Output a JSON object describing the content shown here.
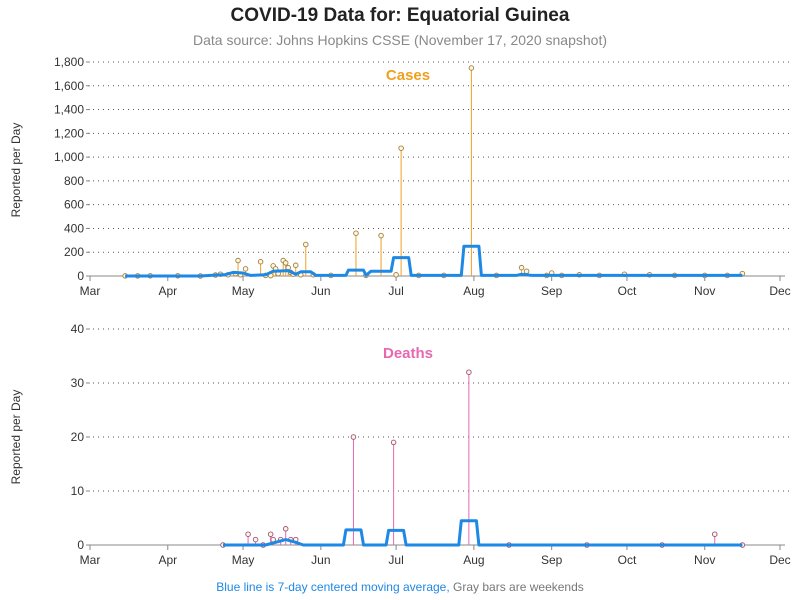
{
  "title": "COVID-19 Data for: Equatorial Guinea",
  "subtitle": "Data source: Johns Hopkins CSSE (November 17, 2020 snapshot)",
  "footer": {
    "blue_text": "Blue line is 7-day centered moving average,",
    "gray_text": "Gray bars are weekends"
  },
  "colors": {
    "cases": "#f0a020",
    "deaths": "#e868b0",
    "moving_average": "#1e88e5",
    "axis": "#888888",
    "grid": "#555555"
  },
  "chart_data": [
    {
      "type": "line",
      "title": "Cases",
      "ylabel": "Reported per Day",
      "ylim": [
        0,
        1800
      ],
      "yticks": [
        0,
        200,
        400,
        600,
        800,
        1000,
        1200,
        1400,
        1600,
        1800
      ],
      "ytick_labels": [
        "0",
        "200",
        "400",
        "600",
        "800",
        "1,000",
        "1,200",
        "1,400",
        "1,600",
        "1,800"
      ],
      "xticks": [
        "Mar",
        "Apr",
        "May",
        "Jun",
        "Jul",
        "Aug",
        "Sep",
        "Oct",
        "Nov",
        "Dec"
      ],
      "grid": "horizontal dotted",
      "series": [
        {
          "name": "Reported",
          "style": "needles with markers",
          "points": [
            [
              "2020-03-15",
              1
            ],
            [
              "2020-03-20",
              1
            ],
            [
              "2020-03-25",
              2
            ],
            [
              "2020-04-05",
              2
            ],
            [
              "2020-04-14",
              0
            ],
            [
              "2020-04-20",
              8
            ],
            [
              "2020-04-22",
              15
            ],
            [
              "2020-04-25",
              10
            ],
            [
              "2020-04-28",
              20
            ],
            [
              "2020-04-29",
              130
            ],
            [
              "2020-04-30",
              10
            ],
            [
              "2020-05-02",
              60
            ],
            [
              "2020-05-08",
              120
            ],
            [
              "2020-05-10",
              5
            ],
            [
              "2020-05-12",
              3
            ],
            [
              "2020-05-13",
              85
            ],
            [
              "2020-05-14",
              60
            ],
            [
              "2020-05-15",
              20
            ],
            [
              "2020-05-17",
              130
            ],
            [
              "2020-05-18",
              110
            ],
            [
              "2020-05-19",
              70
            ],
            [
              "2020-05-20",
              30
            ],
            [
              "2020-05-21",
              15
            ],
            [
              "2020-05-22",
              90
            ],
            [
              "2020-05-24",
              10
            ],
            [
              "2020-05-26",
              265
            ],
            [
              "2020-05-29",
              10
            ],
            [
              "2020-06-05",
              5
            ],
            [
              "2020-06-15",
              360
            ],
            [
              "2020-06-19",
              5
            ],
            [
              "2020-06-25",
              340
            ],
            [
              "2020-07-01",
              10
            ],
            [
              "2020-07-03",
              1075
            ],
            [
              "2020-07-10",
              5
            ],
            [
              "2020-07-20",
              5
            ],
            [
              "2020-07-31",
              1750
            ],
            [
              "2020-08-10",
              5
            ],
            [
              "2020-08-20",
              70
            ],
            [
              "2020-08-22",
              40
            ],
            [
              "2020-08-30",
              5
            ],
            [
              "2020-09-01",
              25
            ],
            [
              "2020-09-05",
              5
            ],
            [
              "2020-09-12",
              10
            ],
            [
              "2020-09-20",
              5
            ],
            [
              "2020-09-30",
              15
            ],
            [
              "2020-10-10",
              10
            ],
            [
              "2020-10-20",
              5
            ],
            [
              "2020-11-01",
              5
            ],
            [
              "2020-11-10",
              5
            ],
            [
              "2020-11-16",
              20
            ]
          ]
        },
        {
          "name": "7-day centered moving average",
          "style": "thick line",
          "points": [
            [
              "2020-03-15",
              0
            ],
            [
              "2020-04-14",
              0
            ],
            [
              "2020-04-18",
              5
            ],
            [
              "2020-04-24",
              12
            ],
            [
              "2020-04-27",
              30
            ],
            [
              "2020-05-01",
              25
            ],
            [
              "2020-05-04",
              5
            ],
            [
              "2020-05-10",
              10
            ],
            [
              "2020-05-13",
              40
            ],
            [
              "2020-05-19",
              45
            ],
            [
              "2020-05-22",
              15
            ],
            [
              "2020-05-24",
              35
            ],
            [
              "2020-05-28",
              35
            ],
            [
              "2020-05-30",
              5
            ],
            [
              "2020-06-11",
              5
            ],
            [
              "2020-06-12",
              50
            ],
            [
              "2020-06-18",
              50
            ],
            [
              "2020-06-19",
              5
            ],
            [
              "2020-06-21",
              40
            ],
            [
              "2020-06-29",
              40
            ],
            [
              "2020-06-30",
              155
            ],
            [
              "2020-07-06",
              155
            ],
            [
              "2020-07-07",
              5
            ],
            [
              "2020-07-27",
              5
            ],
            [
              "2020-07-28",
              250
            ],
            [
              "2020-08-03",
              250
            ],
            [
              "2020-08-04",
              5
            ],
            [
              "2020-08-18",
              5
            ],
            [
              "2020-08-20",
              15
            ],
            [
              "2020-08-24",
              5
            ],
            [
              "2020-11-16",
              5
            ]
          ]
        }
      ]
    },
    {
      "type": "line",
      "title": "Deaths",
      "ylabel": "Reported per Day",
      "ylim": [
        0,
        40
      ],
      "yticks": [
        0,
        10,
        20,
        30,
        40
      ],
      "ytick_labels": [
        "0",
        "10",
        "20",
        "30",
        "40"
      ],
      "xticks": [
        "Mar",
        "Apr",
        "May",
        "Jun",
        "Jul",
        "Aug",
        "Sep",
        "Oct",
        "Nov",
        "Dec"
      ],
      "grid": "horizontal dotted",
      "series": [
        {
          "name": "Reported",
          "style": "needles with markers",
          "points": [
            [
              "2020-04-23",
              0
            ],
            [
              "2020-05-03",
              2
            ],
            [
              "2020-05-06",
              1
            ],
            [
              "2020-05-09",
              0
            ],
            [
              "2020-05-12",
              2
            ],
            [
              "2020-05-13",
              1
            ],
            [
              "2020-05-16",
              1
            ],
            [
              "2020-05-18",
              3
            ],
            [
              "2020-05-20",
              1
            ],
            [
              "2020-05-22",
              1
            ],
            [
              "2020-06-14",
              20
            ],
            [
              "2020-06-30",
              19
            ],
            [
              "2020-07-30",
              32
            ],
            [
              "2020-08-15",
              0
            ],
            [
              "2020-09-15",
              0
            ],
            [
              "2020-10-15",
              0
            ],
            [
              "2020-11-05",
              2
            ],
            [
              "2020-11-16",
              0
            ]
          ]
        },
        {
          "name": "7-day centered moving average",
          "style": "thick line",
          "points": [
            [
              "2020-04-23",
              0
            ],
            [
              "2020-05-10",
              0
            ],
            [
              "2020-05-14",
              0.5
            ],
            [
              "2020-05-18",
              1
            ],
            [
              "2020-05-22",
              0.5
            ],
            [
              "2020-05-25",
              0
            ],
            [
              "2020-06-10",
              0
            ],
            [
              "2020-06-11",
              2.8
            ],
            [
              "2020-06-17",
              2.8
            ],
            [
              "2020-06-18",
              0
            ],
            [
              "2020-06-27",
              0
            ],
            [
              "2020-06-28",
              2.7
            ],
            [
              "2020-07-04",
              2.7
            ],
            [
              "2020-07-05",
              0
            ],
            [
              "2020-07-26",
              0
            ],
            [
              "2020-07-27",
              4.5
            ],
            [
              "2020-08-02",
              4.5
            ],
            [
              "2020-08-03",
              0
            ],
            [
              "2020-11-16",
              0
            ]
          ]
        }
      ]
    }
  ]
}
